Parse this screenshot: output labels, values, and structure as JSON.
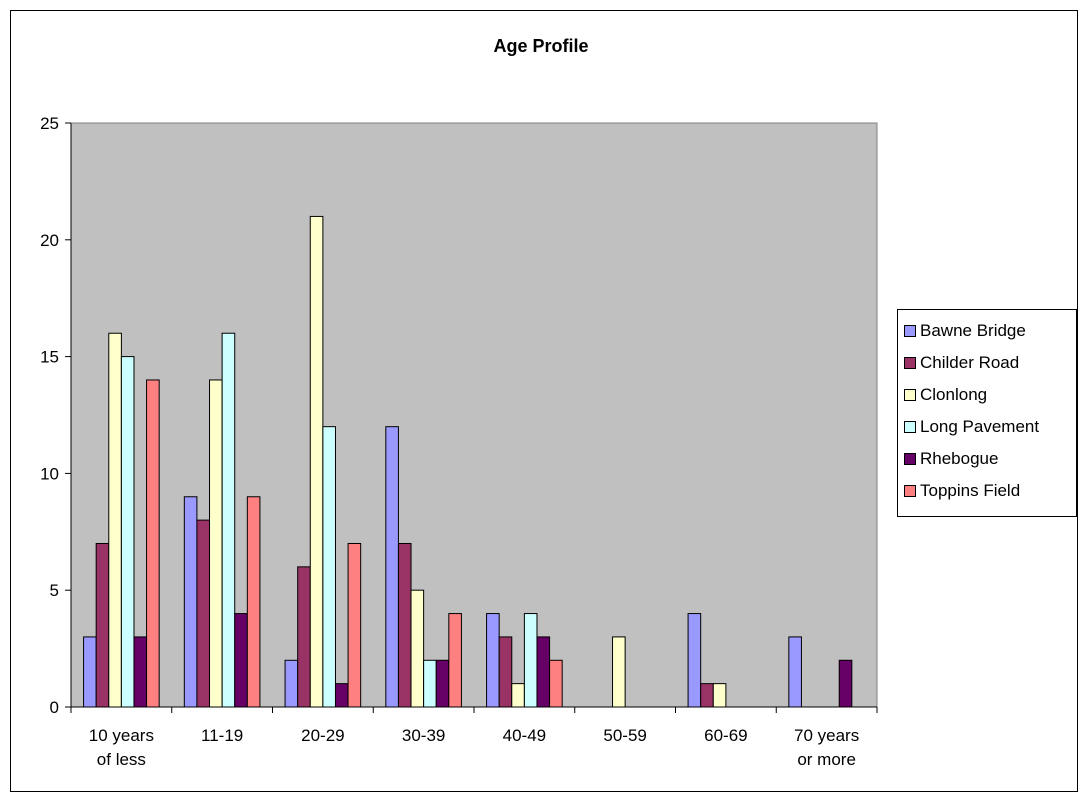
{
  "chart_data": {
    "type": "bar",
    "title": "Age Profile",
    "xlabel": "",
    "ylabel": "",
    "ylim": [
      0,
      25
    ],
    "y_ticks": [
      0,
      5,
      10,
      15,
      20,
      25
    ],
    "grid": false,
    "legend_position": "right",
    "plot_background": "#C0C0C0",
    "categories": [
      [
        "10 years",
        "of less"
      ],
      [
        "11-19"
      ],
      [
        "20-29"
      ],
      [
        "30-39"
      ],
      [
        "40-49"
      ],
      [
        "50-59"
      ],
      [
        "60-69"
      ],
      [
        "70 years",
        "or more"
      ]
    ],
    "series": [
      {
        "name": "Bawne Bridge",
        "color": "#9999FF",
        "values": [
          3,
          9,
          2,
          12,
          4,
          0,
          4,
          3
        ]
      },
      {
        "name": "Childer Road",
        "color": "#993366",
        "values": [
          7,
          8,
          6,
          7,
          3,
          0,
          1,
          0
        ]
      },
      {
        "name": "Clonlong",
        "color": "#FFFFCC",
        "values": [
          16,
          14,
          21,
          5,
          1,
          3,
          1,
          0
        ]
      },
      {
        "name": "Long Pavement",
        "color": "#CCFFFF",
        "values": [
          15,
          16,
          12,
          2,
          4,
          0,
          0,
          0
        ]
      },
      {
        "name": "Rhebogue",
        "color": "#660066",
        "values": [
          3,
          4,
          1,
          2,
          3,
          0,
          0,
          2
        ]
      },
      {
        "name": "Toppins Field",
        "color": "#FF8080",
        "values": [
          14,
          9,
          7,
          4,
          2,
          0,
          0,
          0
        ]
      }
    ]
  }
}
